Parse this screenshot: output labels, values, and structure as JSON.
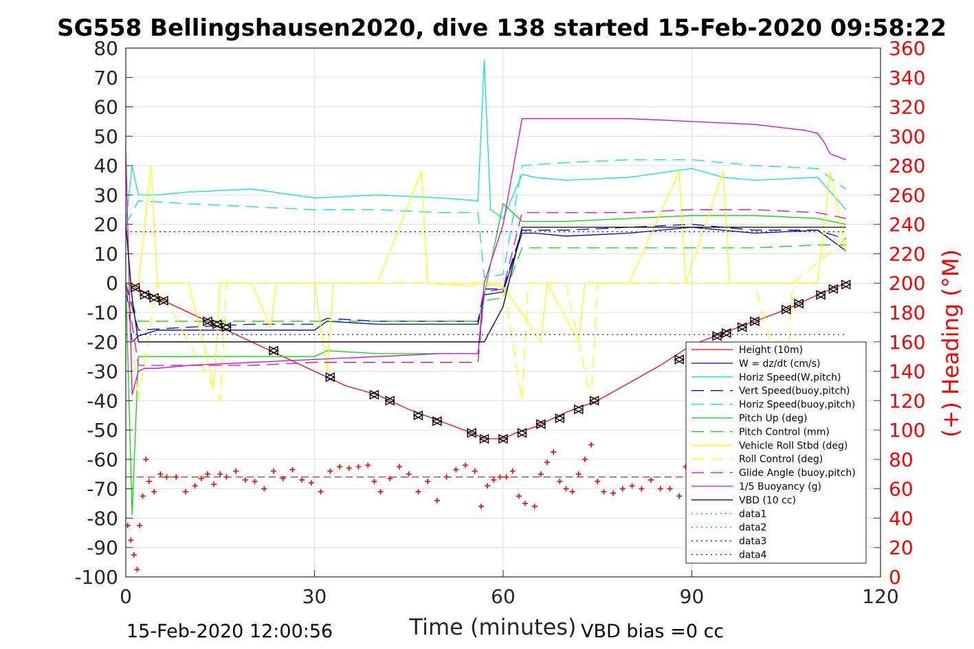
{
  "chart_data": {
    "type": "line",
    "title": "SG558 Bellingshausen2020, dive 138 started 15-Feb-2020 09:58:22",
    "xlabel": "Time (minutes)",
    "ylabel_right": "(+) Heading (°M)",
    "xlim": [
      0,
      120
    ],
    "ylim": [
      -100,
      80
    ],
    "ylim_right": [
      0,
      360
    ],
    "xticks": [
      0,
      30,
      60,
      90,
      120
    ],
    "yticks": [
      -100,
      -90,
      -80,
      -70,
      -60,
      -50,
      -40,
      -30,
      -20,
      -10,
      0,
      10,
      20,
      30,
      40,
      50,
      60,
      70,
      80
    ],
    "yticks_right": [
      0,
      20,
      40,
      60,
      80,
      100,
      120,
      140,
      160,
      180,
      200,
      220,
      240,
      260,
      280,
      300,
      320,
      340,
      360
    ],
    "grid": true,
    "legend_position": "lower-right",
    "footer_left": "15-Feb-2020 12:00:56",
    "footer_right": "VBD bias =0 cc",
    "series": [
      {
        "name": "Height (10m)",
        "color": "#ff0000",
        "style": "solid",
        "axis": "left",
        "x": [
          0,
          2,
          5,
          10,
          15,
          20,
          25,
          30,
          35,
          40,
          45,
          50,
          55,
          57,
          60,
          62,
          65,
          70,
          75,
          80,
          85,
          90,
          95,
          100,
          105,
          110,
          114.5
        ],
        "y": [
          0,
          -2,
          -5,
          -10,
          -15,
          -20,
          -25,
          -30,
          -35,
          -38,
          -43,
          -47,
          -51,
          -53,
          -53,
          -51,
          -49,
          -44,
          -40,
          -34,
          -28,
          -21,
          -17,
          -13,
          -9,
          -4,
          0
        ]
      },
      {
        "name": "W = dz/dt (cm/s)",
        "color": "#0000cc",
        "style": "solid",
        "axis": "left",
        "x": [
          0,
          1,
          2,
          5,
          10,
          20,
          30,
          32,
          40,
          50,
          56,
          57,
          60,
          63,
          65,
          70,
          80,
          90,
          100,
          110,
          114.5
        ],
        "y": [
          0,
          -20,
          -18,
          -16,
          -16,
          -16,
          -16,
          -13,
          -14,
          -14,
          -14,
          -4,
          -3,
          17,
          17,
          16,
          17,
          19,
          17,
          18,
          11
        ]
      },
      {
        "name": "Horiz Speed(W,pitch)",
        "color": "#00e5e5",
        "style": "solid",
        "axis": "left",
        "x": [
          0,
          1,
          2,
          5,
          10,
          20,
          30,
          40,
          50,
          56,
          57,
          58,
          60,
          63,
          65,
          70,
          80,
          90,
          95,
          100,
          110,
          114.5
        ],
        "y": [
          20,
          40,
          30,
          30,
          31,
          32,
          29,
          30,
          29,
          28,
          76,
          25,
          22,
          37,
          36,
          35,
          36,
          39,
          36,
          35,
          36,
          25
        ]
      },
      {
        "name": "Vert Speed(buoy,pitch)",
        "color": "#0000cc",
        "style": "dashed",
        "axis": "left",
        "x": [
          0,
          2,
          10,
          20,
          30,
          32,
          40,
          50,
          56,
          57,
          60,
          63,
          70,
          80,
          90,
          100,
          110,
          114.5
        ],
        "y": [
          0,
          -16,
          -15,
          -14,
          -14,
          -12,
          -13,
          -13,
          -13,
          -2,
          -2,
          18,
          18,
          19,
          20,
          18,
          18,
          15
        ]
      },
      {
        "name": "Horiz Speed(buoy,pitch)",
        "color": "#00e5e5",
        "style": "dashed",
        "axis": "left",
        "x": [
          0,
          2,
          10,
          20,
          30,
          40,
          50,
          56,
          57,
          60,
          63,
          70,
          80,
          90,
          100,
          110,
          114.5
        ],
        "y": [
          20,
          28,
          27,
          26,
          25,
          25,
          24,
          24,
          2,
          3,
          40,
          41,
          42,
          42,
          40,
          39,
          32
        ]
      },
      {
        "name": "Pitch Up (deg)",
        "color": "#00dd00",
        "style": "solid",
        "axis": "left",
        "x": [
          0,
          1,
          2,
          10,
          20,
          30,
          32,
          40,
          50,
          56,
          57,
          60,
          63,
          70,
          80,
          90,
          100,
          110,
          114.5
        ],
        "y": [
          0,
          -79,
          -25,
          -25,
          -25,
          -25,
          -23,
          -24,
          -24,
          -24,
          -4,
          27,
          21,
          21,
          22,
          23,
          23,
          22,
          20
        ]
      },
      {
        "name": "Pitch Control (mm)",
        "color": "#00dd00",
        "style": "dashed",
        "axis": "left",
        "x": [
          0,
          2,
          10,
          20,
          30,
          40,
          50,
          56,
          57,
          60,
          63,
          70,
          80,
          90,
          100,
          110,
          114.5
        ],
        "y": [
          0,
          -13,
          -13,
          -13,
          -13,
          -13,
          -13,
          -13,
          -6,
          -5,
          12,
          12,
          12,
          12,
          12,
          13,
          13
        ]
      },
      {
        "name": "Vehicle Roll Stbd (deg)",
        "color": "#ffff00",
        "style": "solid",
        "axis": "left",
        "x": [
          0,
          2,
          4,
          5,
          10,
          14,
          15,
          20,
          23,
          24,
          30,
          32,
          33,
          40,
          47,
          48,
          55,
          56,
          60,
          66,
          67,
          72,
          73,
          80,
          88,
          89,
          95,
          96,
          100,
          110,
          112,
          114.5
        ],
        "y": [
          0,
          -1,
          40,
          0,
          0,
          -35,
          0,
          0,
          -15,
          0,
          0,
          -30,
          0,
          0,
          38,
          0,
          -1,
          0,
          -1,
          -20,
          0,
          -20,
          0,
          0,
          38,
          0,
          38,
          0,
          0,
          0,
          38,
          10
        ]
      },
      {
        "name": "Roll Control (deg)",
        "color": "#ffff00",
        "style": "dashed",
        "axis": "left",
        "x": [
          0,
          2,
          5,
          15,
          16,
          20,
          30,
          40,
          50,
          55,
          60,
          63,
          64,
          70,
          74,
          75,
          80,
          90,
          100,
          105,
          106,
          114.5
        ],
        "y": [
          0,
          -40,
          0,
          -40,
          0,
          0,
          0,
          0,
          0,
          0,
          0,
          -40,
          0,
          0,
          -40,
          0,
          0,
          0,
          0,
          -40,
          0,
          15
        ]
      },
      {
        "name": "Glide Angle (buoy,pitch)",
        "color": "#dd00dd",
        "style": "dashed",
        "axis": "left",
        "x": [
          0,
          2,
          10,
          20,
          30,
          40,
          50,
          56,
          57,
          60,
          63,
          70,
          80,
          90,
          100,
          110,
          114.5
        ],
        "y": [
          0,
          -28,
          -28,
          -28,
          -27,
          -27,
          -27,
          -27,
          -3,
          -2,
          24,
          24,
          24,
          25,
          25,
          24,
          22
        ]
      },
      {
        "name": "1/5 Buoyancy (g)",
        "color": "#dd00dd",
        "style": "solid",
        "axis": "left",
        "x": [
          0,
          1,
          2,
          3,
          5,
          10,
          20,
          30,
          40,
          50,
          56,
          57,
          60,
          63,
          70,
          80,
          90,
          100,
          108,
          110,
          111,
          112,
          114.5
        ],
        "y": [
          45,
          -38,
          -30,
          -29,
          -29,
          -28,
          -27,
          -26,
          -25,
          -24,
          -24,
          0,
          20,
          56,
          56,
          56,
          55,
          54,
          52,
          51,
          48,
          44,
          42
        ]
      },
      {
        "name": "VBD (10 cc)",
        "color": "#000000",
        "style": "solid",
        "axis": "left",
        "x": [
          0,
          1,
          2,
          10,
          20,
          30,
          40,
          50,
          56,
          57,
          60,
          63,
          70,
          80,
          90,
          100,
          110,
          114.5
        ],
        "y": [
          20,
          -5,
          -20,
          -20,
          -20,
          -20,
          -20,
          -20,
          -20,
          -20,
          -8,
          19,
          19,
          19,
          19,
          19,
          19,
          19
        ]
      },
      {
        "name": "data1",
        "color": "#00dd00",
        "style": "dotted",
        "axis": "left",
        "x": [],
        "y": []
      },
      {
        "name": "data2",
        "color": "#00dd00",
        "style": "dotted",
        "axis": "left",
        "x": [],
        "y": []
      },
      {
        "name": "data3",
        "color": "#0000cc",
        "style": "dotted",
        "axis": "left",
        "x": [
          0,
          114.5
        ],
        "y": [
          -17.5,
          -17.5
        ]
      },
      {
        "name": "data4",
        "color": "#0000cc",
        "style": "dotted",
        "axis": "left",
        "x": [
          0,
          114.5
        ],
        "y": [
          17.5,
          17.5
        ]
      }
    ],
    "heading": {
      "axis": "right",
      "color": "#ff0000",
      "marker": "+",
      "mean": 68,
      "x": [
        0.3,
        0.8,
        1.3,
        1.8,
        2.2,
        2.7,
        3.2,
        3.7,
        4.5,
        5.5,
        6.5,
        8,
        9.5,
        11,
        12,
        13,
        14,
        15,
        16,
        17.5,
        19,
        20.5,
        22,
        23.5,
        25,
        26.5,
        28,
        29.5,
        31,
        32.5,
        34,
        35.5,
        37,
        38.5,
        39.5,
        40.5,
        42,
        43.5,
        45,
        46.5,
        48,
        49.5,
        51,
        52.5,
        54,
        55.5,
        56.5,
        57.5,
        58.5,
        59.5,
        60.5,
        61.5,
        62.5,
        63.5,
        65,
        66,
        67,
        68,
        69,
        70,
        71,
        72,
        73,
        74,
        75,
        76,
        77.5,
        79,
        80.5,
        82,
        83.5,
        85,
        86.5,
        88,
        89
      ],
      "y": [
        35,
        25,
        15,
        5,
        35,
        55,
        80,
        65,
        58,
        70,
        68,
        68,
        58,
        62,
        67,
        70,
        63,
        70,
        68,
        72,
        66,
        65,
        60,
        72,
        67,
        73,
        66,
        64,
        58,
        72,
        75,
        74,
        75,
        76,
        65,
        58,
        67,
        75,
        70,
        58,
        65,
        52,
        68,
        73,
        76,
        72,
        48,
        62,
        66,
        68,
        68,
        72,
        55,
        50,
        48,
        70,
        78,
        85,
        65,
        60,
        58,
        70,
        80,
        90,
        65,
        58,
        57,
        60,
        62,
        60,
        66,
        60,
        60,
        55,
        75
      ]
    },
    "markers": {
      "x": [
        1.5,
        3,
        4.5,
        6,
        13,
        14.5,
        16,
        23.5,
        32.5,
        39.5,
        42,
        46.5,
        49.5,
        55,
        57,
        60,
        63,
        66,
        69,
        72,
        74.5,
        88,
        94,
        95.5,
        98,
        100,
        105,
        107,
        110.5,
        112.5,
        114.5
      ],
      "y": [
        -1.5,
        -4,
        -5,
        -6,
        -13,
        -14,
        -15,
        -23,
        -32,
        -38,
        -40,
        -45,
        -47,
        -51,
        -53,
        -53,
        -51,
        -48,
        -46,
        -43,
        -40,
        -26,
        -18,
        -17,
        -15,
        -13,
        -9,
        -7,
        -4,
        -2,
        -0.5
      ]
    }
  }
}
